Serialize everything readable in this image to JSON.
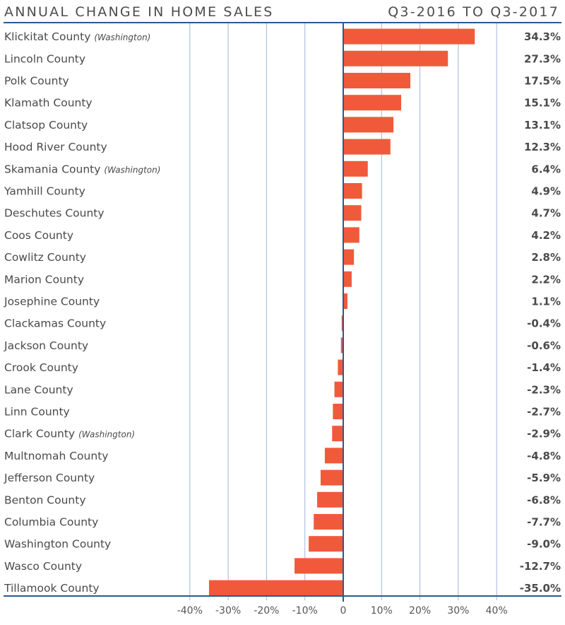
{
  "header": {
    "title": "ANNUAL CHANGE IN HOME SALES",
    "period": "Q3-2016 TO Q3-2017"
  },
  "colors": {
    "bar": "#f05a3a",
    "axis": "#2b5a8c",
    "grid": "#9fb7d4",
    "text": "#4a4a4a"
  },
  "chart_data": {
    "type": "bar",
    "orientation": "horizontal",
    "title": "Annual Change in Home Sales",
    "subtitle": "Q3-2016 to Q3-2017",
    "xlabel": "",
    "ylabel": "",
    "xlim": [
      -40,
      40
    ],
    "grid": true,
    "xticks": [
      -40,
      -30,
      -20,
      -10,
      0,
      10,
      20,
      30,
      40
    ],
    "xtick_labels": [
      "-40%",
      "-30%",
      "-20%",
      "-10%",
      "0",
      "10%",
      "20%",
      "30%",
      "40%"
    ],
    "categories": [
      {
        "name": "Klickitat County",
        "suffix": "(Washington)"
      },
      {
        "name": "Lincoln County",
        "suffix": ""
      },
      {
        "name": "Polk County",
        "suffix": ""
      },
      {
        "name": "Klamath County",
        "suffix": ""
      },
      {
        "name": "Clatsop County",
        "suffix": ""
      },
      {
        "name": "Hood River County",
        "suffix": ""
      },
      {
        "name": "Skamania County",
        "suffix": "(Washington)"
      },
      {
        "name": "Yamhill County",
        "suffix": ""
      },
      {
        "name": "Deschutes County",
        "suffix": ""
      },
      {
        "name": "Coos County",
        "suffix": ""
      },
      {
        "name": "Cowlitz County",
        "suffix": ""
      },
      {
        "name": "Marion County",
        "suffix": ""
      },
      {
        "name": "Josephine County",
        "suffix": ""
      },
      {
        "name": "Clackamas County",
        "suffix": ""
      },
      {
        "name": "Jackson County",
        "suffix": ""
      },
      {
        "name": "Crook County",
        "suffix": ""
      },
      {
        "name": "Lane County",
        "suffix": ""
      },
      {
        "name": "Linn County",
        "suffix": ""
      },
      {
        "name": "Clark County",
        "suffix": "(Washington)"
      },
      {
        "name": "Multnomah County",
        "suffix": ""
      },
      {
        "name": "Jefferson County",
        "suffix": ""
      },
      {
        "name": "Benton County",
        "suffix": ""
      },
      {
        "name": "Columbia County",
        "suffix": ""
      },
      {
        "name": "Washington County",
        "suffix": ""
      },
      {
        "name": "Wasco County",
        "suffix": ""
      },
      {
        "name": "Tillamook County",
        "suffix": ""
      }
    ],
    "values": [
      34.3,
      27.3,
      17.5,
      15.1,
      13.1,
      12.3,
      6.4,
      4.9,
      4.7,
      4.2,
      2.8,
      2.2,
      1.1,
      -0.4,
      -0.6,
      -1.4,
      -2.3,
      -2.7,
      -2.9,
      -4.8,
      -5.9,
      -6.8,
      -7.7,
      -9.0,
      -12.7,
      -35.0
    ],
    "value_labels": [
      "34.3%",
      "27.3%",
      "17.5%",
      "15.1%",
      "13.1%",
      "12.3%",
      "6.4%",
      "4.9%",
      "4.7%",
      "4.2%",
      "2.8%",
      "2.2%",
      "1.1%",
      "-0.4%",
      "-0.6%",
      "-1.4%",
      "-2.3%",
      "-2.7%",
      "-2.9%",
      "-4.8%",
      "-5.9%",
      "-6.8%",
      "-7.7%",
      "-9.0%",
      "-12.7%",
      "-35.0%"
    ],
    "unit": "%"
  }
}
